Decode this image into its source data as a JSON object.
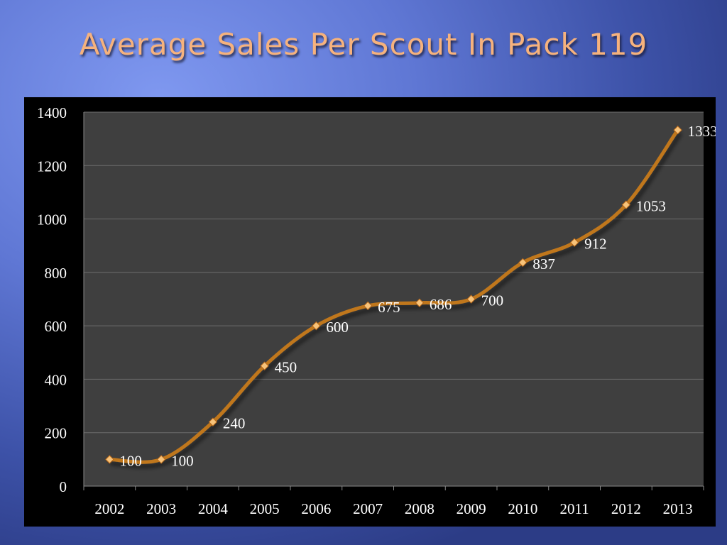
{
  "slide": {
    "title": "Average Sales Per Scout In Pack 119"
  },
  "chart_data": {
    "type": "line",
    "title": "",
    "xlabel": "",
    "ylabel": "",
    "categories": [
      "2002",
      "2003",
      "2004",
      "2005",
      "2006",
      "2007",
      "2008",
      "2009",
      "2010",
      "2011",
      "2012",
      "2013"
    ],
    "series": [
      {
        "values": [
          100,
          100,
          240,
          450,
          600,
          675,
          686,
          700,
          837,
          912,
          1053,
          1333
        ]
      }
    ],
    "ylim": [
      0,
      1400
    ],
    "yticks": [
      0,
      200,
      400,
      600,
      800,
      1000,
      1200,
      1400
    ],
    "grid": true,
    "legend": "none",
    "data_labels": true,
    "colors": {
      "line": "#c0771c",
      "marker": "#f7c37a",
      "plot_bg": "#3f3f3f",
      "frame_bg": "#000000",
      "text": "#ffffff"
    }
  }
}
